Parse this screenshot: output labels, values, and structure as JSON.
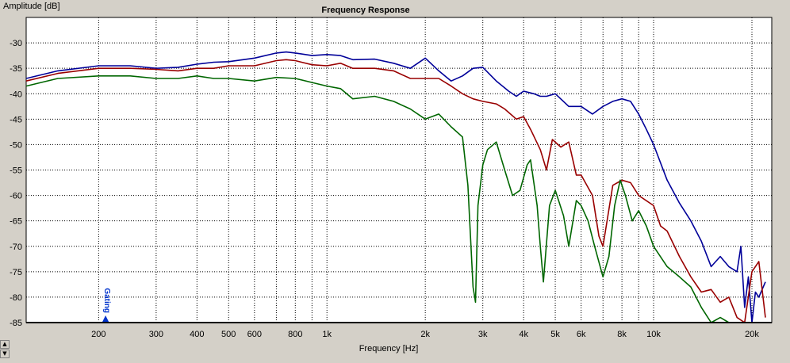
{
  "chart_data": {
    "type": "line",
    "title": "Frequency Response",
    "xlabel": "Frequency [Hz]",
    "ylabel": "Amplitude [dB]",
    "x_scale": "log",
    "xlim": [
      120,
      23000
    ],
    "ylim": [
      -85,
      -25
    ],
    "grid": true,
    "x_ticks": [
      {
        "value": 200,
        "label": "200"
      },
      {
        "value": 300,
        "label": "300"
      },
      {
        "value": 400,
        "label": "400"
      },
      {
        "value": 500,
        "label": "500"
      },
      {
        "value": 600,
        "label": "600"
      },
      {
        "value": 800,
        "label": "800"
      },
      {
        "value": 1000,
        "label": "1k"
      },
      {
        "value": 2000,
        "label": "2k"
      },
      {
        "value": 3000,
        "label": "3k"
      },
      {
        "value": 4000,
        "label": "4k"
      },
      {
        "value": 5000,
        "label": "5k"
      },
      {
        "value": 6000,
        "label": "6k"
      },
      {
        "value": 8000,
        "label": "8k"
      },
      {
        "value": 10000,
        "label": "10k"
      },
      {
        "value": 20000,
        "label": "20k"
      }
    ],
    "y_ticks": [
      {
        "value": -30,
        "label": "-30"
      },
      {
        "value": -35,
        "label": "-35"
      },
      {
        "value": -40,
        "label": "-40"
      },
      {
        "value": -45,
        "label": "-45"
      },
      {
        "value": -50,
        "label": "-50"
      },
      {
        "value": -55,
        "label": "-55"
      },
      {
        "value": -60,
        "label": "-60"
      },
      {
        "value": -65,
        "label": "-65"
      },
      {
        "value": -70,
        "label": "-70"
      },
      {
        "value": -75,
        "label": "-75"
      },
      {
        "value": -80,
        "label": "-80"
      },
      {
        "value": -85,
        "label": "-85"
      }
    ],
    "gating_marker": {
      "value": 210,
      "label": "Gating"
    },
    "series": [
      {
        "color": "#000099",
        "x": [
          120,
          150,
          200,
          250,
          300,
          350,
          400,
          450,
          500,
          600,
          700,
          750,
          800,
          900,
          1000,
          1100,
          1200,
          1400,
          1600,
          1800,
          2000,
          2200,
          2400,
          2600,
          2800,
          3000,
          3300,
          3600,
          3800,
          4000,
          4300,
          4500,
          4700,
          5000,
          5500,
          6000,
          6500,
          7000,
          7500,
          8000,
          8500,
          9000,
          9500,
          10000,
          11000,
          12000,
          13000,
          14000,
          15000,
          16000,
          17000,
          18000,
          18500,
          19000,
          19500,
          20000,
          20500,
          21000,
          22000
        ],
        "values": [
          -37,
          -35.5,
          -34.5,
          -34.5,
          -35,
          -34.8,
          -34.2,
          -33.8,
          -33.7,
          -33,
          -32,
          -31.8,
          -32,
          -32.5,
          -32.3,
          -32.5,
          -33.3,
          -33.2,
          -34,
          -35,
          -33,
          -35.5,
          -37.5,
          -36.5,
          -35,
          -34.8,
          -37.5,
          -39.5,
          -40.5,
          -39.5,
          -40,
          -40.5,
          -40.5,
          -40,
          -42.5,
          -42.5,
          -44,
          -42.5,
          -41.5,
          -41,
          -41.5,
          -44,
          -47,
          -50,
          -57,
          -61.5,
          -65,
          -69,
          -74,
          -72,
          -74,
          -75,
          -70,
          -82,
          -76,
          -85,
          -79,
          -80,
          -77
        ]
      },
      {
        "color": "#990000",
        "x": [
          120,
          150,
          200,
          250,
          300,
          350,
          400,
          450,
          500,
          600,
          700,
          750,
          800,
          900,
          1000,
          1100,
          1200,
          1400,
          1600,
          1800,
          2000,
          2200,
          2400,
          2600,
          2800,
          3000,
          3300,
          3500,
          3800,
          4000,
          4200,
          4500,
          4700,
          4900,
          5200,
          5500,
          5800,
          6000,
          6500,
          6800,
          7000,
          7500,
          8000,
          8500,
          9000,
          10000,
          10500,
          11000,
          12000,
          13000,
          14000,
          15000,
          16000,
          17000,
          18000,
          19000,
          20000,
          21000,
          22000
        ],
        "values": [
          -37.5,
          -36,
          -35,
          -35,
          -35.2,
          -35.5,
          -35,
          -35,
          -34.5,
          -34.5,
          -33.5,
          -33.3,
          -33.5,
          -34.3,
          -34.5,
          -34,
          -35,
          -35,
          -35.5,
          -37,
          -37,
          -37,
          -38.5,
          -40,
          -41,
          -41.5,
          -42,
          -43,
          -45,
          -44.5,
          -47,
          -51,
          -55,
          -49,
          -50.5,
          -49.5,
          -56,
          -56,
          -60,
          -68,
          -70,
          -58,
          -57,
          -57.5,
          -60,
          -62,
          -66,
          -67,
          -72,
          -76,
          -79,
          -78.5,
          -81,
          -80,
          -84,
          -85,
          -75,
          -73,
          -84
        ]
      },
      {
        "color": "#006600",
        "x": [
          120,
          150,
          200,
          250,
          300,
          350,
          400,
          450,
          500,
          600,
          700,
          800,
          900,
          1000,
          1100,
          1200,
          1400,
          1600,
          1800,
          2000,
          2200,
          2400,
          2600,
          2700,
          2800,
          2850,
          2900,
          3000,
          3100,
          3300,
          3500,
          3700,
          3900,
          4100,
          4200,
          4400,
          4500,
          4600,
          4800,
          5000,
          5300,
          5500,
          5800,
          6000,
          6300,
          6600,
          7000,
          7300,
          7600,
          7900,
          8200,
          8600,
          9000,
          9500,
          10000,
          11000,
          12000,
          13000,
          14000,
          15000,
          16000,
          17000,
          18000,
          18500,
          19000,
          20000,
          21000,
          22000
        ],
        "values": [
          -38.5,
          -37,
          -36.5,
          -36.5,
          -37,
          -37,
          -36.5,
          -37,
          -37,
          -37.5,
          -36.8,
          -37,
          -37.8,
          -38.5,
          -39,
          -41,
          -40.5,
          -41.5,
          -43,
          -45,
          -44,
          -46.5,
          -48.5,
          -58,
          -78,
          -81,
          -62,
          -54,
          -51,
          -49.5,
          -55,
          -60,
          -59,
          -54,
          -53,
          -62,
          -70,
          -77,
          -62,
          -59,
          -64,
          -70,
          -61,
          -62,
          -65,
          -70,
          -76,
          -72,
          -62,
          -57,
          -60,
          -65,
          -63,
          -66,
          -70,
          -74,
          -76,
          -78,
          -82,
          -85,
          -84,
          -85,
          -85,
          -85,
          -85,
          -85,
          -85,
          -85
        ]
      }
    ]
  }
}
